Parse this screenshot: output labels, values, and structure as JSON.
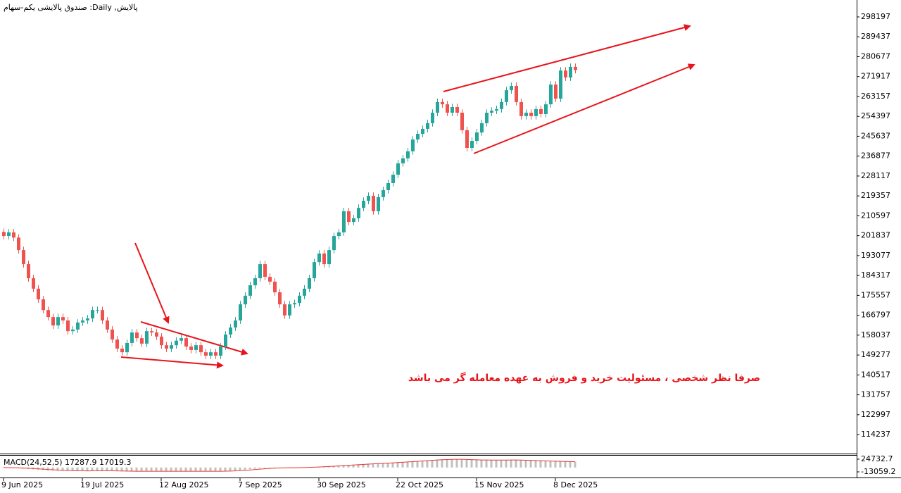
{
  "chart_data": [
    {
      "type": "candlestick",
      "title": "پالایش, Daily:  صندوق پالایشی یکم-سهام",
      "annotation": "صرفا نظر شخصی ، مسئولیت خرید و فروش به عهده معامله گر می باشد",
      "categories": [
        "9 Jun 2025",
        null,
        null,
        null,
        null,
        null,
        null,
        null,
        null,
        null,
        null,
        null,
        null,
        null,
        null,
        null,
        "19 Jul 2025",
        null,
        null,
        null,
        null,
        null,
        null,
        null,
        null,
        null,
        null,
        null,
        null,
        null,
        null,
        null,
        "12 Aug 2025",
        null,
        null,
        null,
        null,
        null,
        null,
        null,
        null,
        null,
        null,
        null,
        null,
        null,
        null,
        null,
        "7 Sep 2025",
        null,
        null,
        null,
        null,
        null,
        null,
        null,
        null,
        null,
        null,
        null,
        null,
        null,
        null,
        null,
        "30 Sep 2025",
        null,
        null,
        null,
        null,
        null,
        null,
        null,
        null,
        null,
        null,
        null,
        null,
        null,
        null,
        null,
        "22 Oct 2025",
        null,
        null,
        null,
        null,
        null,
        null,
        null,
        null,
        null,
        null,
        null,
        null,
        null,
        null,
        null,
        "15 Nov 2025",
        null,
        null,
        null,
        null,
        null,
        null,
        null,
        null,
        null,
        null,
        null,
        null,
        null,
        null,
        null,
        "8 Dec 2025",
        null,
        null,
        null,
        null
      ],
      "open": [
        203500,
        201700,
        203300,
        201000,
        195500,
        189300,
        183100,
        178500,
        173800,
        169100,
        166000,
        162300,
        166000,
        164500,
        159800,
        160500,
        163600,
        164500,
        165400,
        169100,
        169100,
        164500,
        160500,
        156100,
        152100,
        150500,
        154600,
        159200,
        156700,
        154300,
        159800,
        159200,
        157400,
        153600,
        152100,
        153600,
        155600,
        156700,
        153000,
        151500,
        153600,
        150500,
        149000,
        150500,
        149000,
        153000,
        158300,
        161400,
        164500,
        171600,
        175400,
        180000,
        183100,
        189300,
        183700,
        181600,
        176900,
        171600,
        166700,
        171600,
        172200,
        175400,
        178500,
        183100,
        190200,
        194000,
        189300,
        195500,
        201700,
        203300,
        212600,
        207900,
        209500,
        214100,
        217200,
        219400,
        212600,
        218800,
        221900,
        225000,
        228700,
        233700,
        235900,
        239000,
        244200,
        246700,
        248900,
        251400,
        256000,
        260700,
        259700,
        256000,
        258500,
        256000,
        248300,
        240500,
        243600,
        247300,
        251400,
        256000,
        256900,
        257600,
        260700,
        265900,
        267800,
        260700,
        254500,
        256000,
        254500,
        257600,
        255400,
        259700,
        268400,
        262200,
        274600,
        271500,
        276200
      ],
      "high": [
        205000,
        204800,
        204800,
        202500,
        197000,
        190800,
        184600,
        180000,
        175300,
        170600,
        167500,
        167500,
        167500,
        166000,
        162000,
        165100,
        166000,
        166900,
        170600,
        170600,
        170600,
        166000,
        162000,
        157600,
        153600,
        156100,
        160700,
        160700,
        158200,
        161300,
        161300,
        160700,
        158900,
        155100,
        155100,
        157100,
        158200,
        158200,
        154500,
        155100,
        155100,
        152000,
        152000,
        152000,
        154500,
        159800,
        162900,
        166000,
        173100,
        176900,
        181500,
        184600,
        190800,
        190800,
        185200,
        183100,
        178400,
        173100,
        173100,
        173700,
        176900,
        180000,
        184600,
        191700,
        195500,
        195500,
        197000,
        203200,
        204800,
        214100,
        214100,
        211000,
        215600,
        218700,
        220900,
        220900,
        220300,
        223400,
        226500,
        230200,
        235200,
        237400,
        240500,
        245700,
        248200,
        250400,
        252900,
        257500,
        262200,
        262200,
        261200,
        260000,
        260000,
        257500,
        249800,
        245100,
        248800,
        252900,
        257500,
        258400,
        259100,
        262200,
        267400,
        269300,
        269300,
        262200,
        257500,
        257500,
        259100,
        259100,
        261200,
        269900,
        269900,
        276100,
        276100,
        277700,
        277700
      ],
      "low": [
        200200,
        200200,
        199500,
        194000,
        187800,
        181600,
        177000,
        172300,
        167600,
        164500,
        160800,
        160800,
        163000,
        158300,
        158300,
        159000,
        162100,
        163000,
        163900,
        167600,
        163000,
        159000,
        154600,
        150600,
        149000,
        149000,
        153100,
        155200,
        152800,
        152800,
        157700,
        155900,
        152100,
        150600,
        150600,
        152100,
        154100,
        151500,
        150000,
        150000,
        149000,
        147500,
        147500,
        147500,
        147500,
        151500,
        156800,
        159900,
        163000,
        170100,
        173900,
        178500,
        181600,
        182200,
        180100,
        175400,
        170100,
        165200,
        165200,
        170100,
        170700,
        173900,
        177000,
        181600,
        188700,
        187800,
        187800,
        194000,
        200200,
        201800,
        206400,
        206400,
        208000,
        212600,
        215700,
        211100,
        211100,
        217300,
        220400,
        223500,
        227200,
        232200,
        234400,
        237500,
        242700,
        245200,
        247400,
        249900,
        254500,
        258200,
        254500,
        254500,
        254500,
        246800,
        239000,
        239000,
        242100,
        245800,
        249900,
        254500,
        255400,
        256100,
        259200,
        264400,
        259200,
        253000,
        253000,
        253000,
        253000,
        253900,
        253900,
        258200,
        260700,
        260700,
        270000,
        270000,
        273300
      ],
      "close": [
        201700,
        203300,
        201000,
        195500,
        189300,
        183100,
        178500,
        173800,
        169100,
        166000,
        162300,
        166000,
        164500,
        159800,
        160500,
        163600,
        164500,
        165400,
        169100,
        169100,
        164500,
        160500,
        156100,
        152100,
        150500,
        154600,
        159200,
        156700,
        154300,
        159800,
        159200,
        157400,
        153600,
        152100,
        153600,
        155600,
        156700,
        153000,
        151500,
        153600,
        150500,
        149000,
        150500,
        149000,
        153000,
        158300,
        161400,
        164500,
        171600,
        175400,
        180000,
        183100,
        189300,
        183700,
        181600,
        176900,
        171600,
        166700,
        171600,
        172200,
        175400,
        178500,
        183100,
        190200,
        194000,
        189300,
        195500,
        201700,
        203300,
        212600,
        207900,
        209500,
        214100,
        217200,
        219400,
        212600,
        218800,
        221900,
        225000,
        228700,
        233700,
        235900,
        239000,
        244200,
        246700,
        248900,
        251400,
        256000,
        260700,
        259700,
        256000,
        258500,
        256000,
        248300,
        240500,
        243600,
        247300,
        251400,
        256000,
        256900,
        257600,
        260700,
        265900,
        267800,
        260700,
        254500,
        256000,
        254500,
        257600,
        255400,
        259700,
        268400,
        262200,
        274600,
        271500,
        276200,
        274800
      ],
      "up_color": "#26a69a",
      "down_color": "#ef5350",
      "ylim": [
        106190,
        303160
      ],
      "yticks": [
        114237,
        122997,
        131757,
        140517,
        149277,
        158037,
        166797,
        175557,
        184317,
        193077,
        201837,
        210597,
        219357,
        228117,
        236877,
        245637,
        254397,
        263157,
        271917,
        280677,
        289437,
        298197
      ],
      "grid": false
    },
    {
      "type": "macd",
      "label": "MACD(24,52,5) 17287.9 17019.3",
      "values": [
        -500,
        -1000,
        -1500,
        -2500,
        -3500,
        -4500,
        -5500,
        -6500,
        -7500,
        -8500,
        -9200,
        -9500,
        -9800,
        -10200,
        -10500,
        -10500,
        -10400,
        -10200,
        -9800,
        -9500,
        -9600,
        -9900,
        -10300,
        -10800,
        -11200,
        -11300,
        -11200,
        -11200,
        -11300,
        -11100,
        -11000,
        -11000,
        -11200,
        -11400,
        -11400,
        -11300,
        -11100,
        -11100,
        -11200,
        -11100,
        -11200,
        -11300,
        -11300,
        -11300,
        -11100,
        -10600,
        -10000,
        -9200,
        -8000,
        -6800,
        -5400,
        -4000,
        -2500,
        -1600,
        -900,
        -600,
        -600,
        -700,
        -500,
        -300,
        0,
        400,
        1000,
        1800,
        2700,
        3300,
        4100,
        5000,
        5900,
        7100,
        7900,
        8700,
        9600,
        10500,
        11400,
        11700,
        12300,
        13000,
        13800,
        14600,
        15600,
        16500,
        17400,
        18500,
        19500,
        20400,
        21300,
        22300,
        23300,
        24000,
        24400,
        24700,
        24800,
        24300,
        23400,
        22700,
        22300,
        22100,
        22100,
        22100,
        22000,
        22100,
        22400,
        22700,
        22500,
        21800,
        21200,
        20600,
        20200,
        19700,
        19000,
        18800,
        18300,
        18000,
        17700,
        17500,
        17287.9
      ],
      "signal": [
        -200,
        -400,
        -700,
        -1100,
        -1700,
        -2400,
        -3200,
        -4100,
        -5000,
        -5900,
        -6800,
        -7600,
        -8300,
        -8900,
        -9400,
        -9800,
        -10000,
        -10100,
        -10000,
        -9900,
        -9800,
        -9800,
        -9900,
        -10200,
        -10500,
        -10800,
        -11000,
        -11100,
        -11200,
        -11200,
        -11100,
        -11100,
        -11100,
        -11200,
        -11300,
        -11300,
        -11200,
        -11200,
        -11200,
        -11200,
        -11200,
        -11200,
        -11300,
        -11300,
        -11200,
        -11000,
        -10700,
        -10200,
        -9500,
        -8600,
        -7500,
        -6300,
        -5000,
        -3900,
        -2900,
        -2100,
        -1500,
        -1100,
        -800,
        -600,
        -400,
        -100,
        300,
        900,
        1500,
        2200,
        2900,
        3700,
        4500,
        5500,
        6400,
        7300,
        8200,
        9100,
        10000,
        10800,
        11500,
        12200,
        13000,
        13800,
        14700,
        15600,
        16500,
        17500,
        18500,
        19400,
        20300,
        21300,
        22300,
        23100,
        23700,
        24200,
        24500,
        24400,
        24000,
        23400,
        22900,
        22500,
        22300,
        22200,
        22100,
        22100,
        22200,
        22400,
        22500,
        22200,
        21700,
        21200,
        20700,
        20200,
        19700,
        19300,
        18800,
        18400,
        18000,
        17600,
        17019.3
      ],
      "color": "#c0c0c0",
      "signal_color": "#e53935",
      "ylim": [
        -25656,
        33131
      ],
      "yticks": [
        24732.7,
        -13059.2
      ]
    }
  ]
}
